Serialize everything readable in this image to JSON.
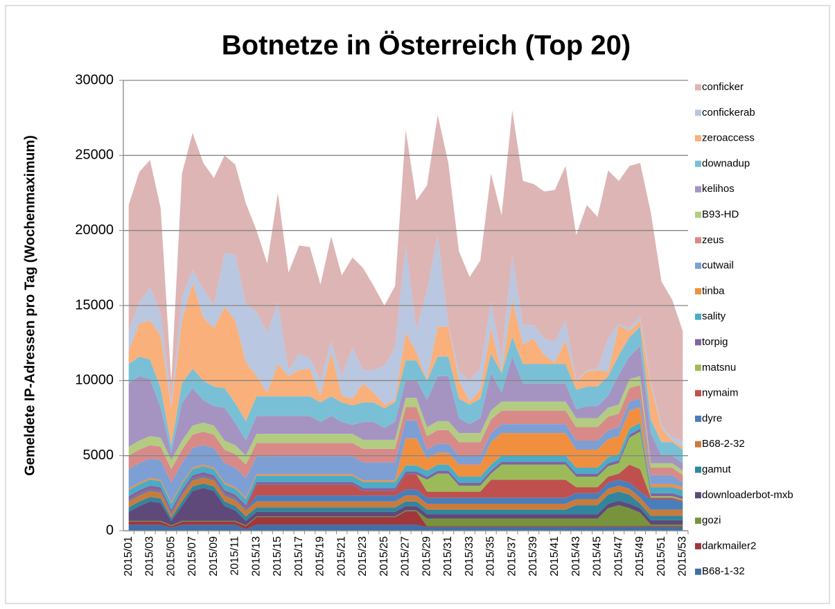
{
  "chart_data": {
    "type": "area",
    "stacked": true,
    "title": "Botnetze in Österreich (Top 20)",
    "y_label": "Gemeldete IP-Adressen pro Tag (Wochenmaximum)",
    "ylim": [
      0,
      30000
    ],
    "yticks": [
      0,
      5000,
      10000,
      15000,
      20000,
      25000,
      30000
    ],
    "grid": true,
    "legend": "right",
    "categories": [
      "2015/01",
      null,
      "2015/03",
      null,
      "2015/05",
      null,
      "2015/07",
      null,
      "2015/09",
      null,
      "2015/11",
      null,
      "2015/13",
      null,
      "2015/15",
      null,
      "2015/17",
      null,
      "2015/19",
      null,
      "2015/21",
      null,
      "2015/23",
      null,
      "2015/25",
      null,
      "2015/27",
      null,
      "2015/29",
      null,
      "2015/31",
      null,
      "2015/33",
      null,
      "2015/35",
      null,
      "2015/37",
      null,
      "2015/39",
      null,
      "2015/41",
      null,
      "2015/43",
      null,
      "2015/45",
      null,
      "2015/47",
      null,
      "2015/49",
      null,
      "2015/51",
      null,
      "2015/53"
    ],
    "series": [
      {
        "name": "conficker",
        "color": "#DDB5B5",
        "values": [
          8400,
          8700,
          8500,
          7000,
          1400,
          8300,
          9100,
          8400,
          8500,
          6500,
          6000,
          6700,
          5400,
          4600,
          7300,
          6500,
          7200,
          7400,
          6400,
          7000,
          6700,
          6000,
          6800,
          5600,
          4000,
          4100,
          7700,
          8600,
          7000,
          8000,
          10800,
          8000,
          6900,
          7200,
          8600,
          9500,
          9700,
          9600,
          9400,
          9800,
          10100,
          10300,
          9700,
          11000,
          10100,
          11200,
          9500,
          10800,
          10200,
          11200,
          9600,
          9200,
          7300
        ]
      },
      {
        "name": "confickerab",
        "color": "#B9C7E0",
        "values": [
          1300,
          1400,
          2200,
          1500,
          300,
          1500,
          900,
          1900,
          1500,
          3600,
          4400,
          3900,
          4300,
          4000,
          4100,
          400,
          1100,
          700,
          1000,
          700,
          1300,
          3400,
          900,
          1500,
          2600,
          3500,
          5800,
          1500,
          5900,
          6100,
          100,
          600,
          1400,
          1400,
          1700,
          900,
          2900,
          1300,
          900,
          1100,
          1400,
          1300,
          100,
          100,
          100,
          2200,
          100,
          200,
          300,
          300,
          200,
          200,
          400
        ]
      },
      {
        "name": "zeroaccess",
        "color": "#FAB07A",
        "values": [
          900,
          2200,
          2600,
          3500,
          2500,
          4200,
          5700,
          4200,
          3900,
          5400,
          5500,
          3900,
          1350,
          250,
          2150,
          1350,
          1750,
          1850,
          450,
          2950,
          450,
          450,
          1250,
          650,
          250,
          150,
          1850,
          550,
          100,
          2000,
          2000,
          1200,
          200,
          600,
          1700,
          100,
          2500,
          1300,
          1700,
          600,
          100,
          1600,
          500,
          1000,
          1100,
          300,
          2000,
          400,
          400,
          2300,
          900,
          100,
          200
        ]
      },
      {
        "name": "downadup",
        "color": "#79C0D6",
        "values": [
          1300,
          1300,
          1300,
          1300,
          500,
          1300,
          1300,
          1300,
          1300,
          1300,
          1300,
          1300,
          1300,
          1300,
          1300,
          1300,
          1300,
          1300,
          1300,
          1300,
          1300,
          1300,
          1300,
          1300,
          1300,
          1300,
          1300,
          1300,
          1300,
          1300,
          1300,
          1300,
          1300,
          1300,
          1300,
          1300,
          1300,
          1300,
          1300,
          1300,
          1300,
          1300,
          1300,
          1300,
          1300,
          1300,
          1300,
          1300,
          1300,
          900,
          900,
          900,
          900
        ]
      },
      {
        "name": "kelihos",
        "color": "#A594C2",
        "values": [
          4200,
          4300,
          3800,
          2000,
          500,
          2500,
          2500,
          1500,
          1300,
          2200,
          1500,
          1000,
          1200,
          1200,
          1200,
          1200,
          1200,
          1200,
          800,
          1200,
          800,
          600,
          1200,
          1200,
          800,
          1200,
          1200,
          1200,
          1800,
          3000,
          3000,
          1000,
          600,
          1000,
          2500,
          600,
          3000,
          1200,
          1200,
          1200,
          1200,
          1200,
          600,
          800,
          800,
          800,
          2000,
          1500,
          2000,
          2000,
          500,
          500,
          500
        ]
      },
      {
        "name": "B93-HD",
        "color": "#B3CC82",
        "values": [
          600,
          600,
          600,
          600,
          600,
          600,
          600,
          600,
          600,
          600,
          600,
          600,
          600,
          600,
          600,
          600,
          600,
          600,
          600,
          600,
          600,
          600,
          600,
          600,
          600,
          600,
          600,
          600,
          600,
          600,
          600,
          600,
          600,
          600,
          600,
          600,
          600,
          600,
          600,
          600,
          600,
          600,
          600,
          600,
          600,
          600,
          600,
          600,
          600,
          300,
          300,
          300,
          300
        ]
      },
      {
        "name": "zeus",
        "color": "#D88A89",
        "values": [
          900,
          900,
          900,
          900,
          900,
          900,
          900,
          900,
          900,
          900,
          900,
          900,
          900,
          900,
          900,
          900,
          900,
          900,
          900,
          900,
          900,
          900,
          900,
          900,
          900,
          900,
          900,
          900,
          900,
          900,
          900,
          900,
          900,
          900,
          900,
          900,
          900,
          900,
          900,
          900,
          900,
          900,
          900,
          900,
          900,
          900,
          900,
          900,
          900,
          500,
          500,
          500,
          500
        ]
      },
      {
        "name": "cutwail",
        "color": "#7E9FD3",
        "values": [
          1300,
          1300,
          1300,
          1300,
          1300,
          1300,
          1300,
          1300,
          1300,
          1300,
          1300,
          1300,
          1200,
          1200,
          1200,
          1200,
          1200,
          1200,
          1200,
          1200,
          1200,
          1200,
          1200,
          1200,
          1200,
          1200,
          1200,
          1200,
          600,
          600,
          600,
          600,
          600,
          600,
          600,
          600,
          600,
          600,
          600,
          600,
          600,
          600,
          600,
          600,
          600,
          600,
          600,
          600,
          600,
          600,
          600,
          600,
          300
        ]
      },
      {
        "name": "tinba",
        "color": "#F0903F",
        "values": [
          100,
          100,
          100,
          100,
          100,
          100,
          100,
          100,
          100,
          100,
          100,
          100,
          100,
          100,
          100,
          100,
          100,
          100,
          100,
          100,
          100,
          100,
          100,
          100,
          100,
          100,
          1800,
          1800,
          800,
          800,
          800,
          800,
          800,
          800,
          1500,
          1500,
          1500,
          1500,
          1500,
          1500,
          1500,
          1500,
          1200,
          1200,
          1200,
          1200,
          1200,
          1200,
          1000,
          200,
          200,
          200,
          200
        ]
      },
      {
        "name": "sality",
        "color": "#4BACC6",
        "values": [
          400,
          400,
          400,
          400,
          400,
          400,
          400,
          400,
          400,
          400,
          400,
          400,
          400,
          400,
          400,
          400,
          400,
          400,
          400,
          400,
          400,
          400,
          400,
          400,
          400,
          400,
          400,
          400,
          400,
          400,
          400,
          400,
          400,
          400,
          400,
          400,
          400,
          400,
          400,
          400,
          400,
          400,
          400,
          400,
          400,
          400,
          400,
          400,
          400,
          400,
          400,
          400,
          400
        ]
      },
      {
        "name": "torpig",
        "color": "#8064A2",
        "values": [
          200,
          200,
          200,
          200,
          200,
          200,
          200,
          200,
          200,
          200,
          200,
          200,
          200,
          200,
          200,
          200,
          200,
          200,
          200,
          200,
          200,
          200,
          200,
          200,
          200,
          200,
          200,
          200,
          200,
          200,
          200,
          200,
          200,
          200,
          200,
          200,
          200,
          200,
          200,
          200,
          200,
          200,
          200,
          200,
          200,
          200,
          200,
          200,
          200,
          200,
          200,
          200,
          200
        ]
      },
      {
        "name": "matsnu",
        "color": "#9BBB59",
        "values": [
          0,
          0,
          0,
          0,
          0,
          0,
          0,
          0,
          0,
          0,
          0,
          0,
          0,
          0,
          0,
          0,
          0,
          0,
          0,
          0,
          0,
          0,
          0,
          0,
          0,
          0,
          0,
          0,
          800,
          1200,
          1200,
          400,
          400,
          400,
          400,
          1000,
          1000,
          1000,
          1000,
          1000,
          1000,
          1000,
          700,
          700,
          700,
          700,
          700,
          1800,
          2500,
          100,
          100,
          100,
          100
        ]
      },
      {
        "name": "nymaim",
        "color": "#C0504D",
        "values": [
          50,
          50,
          50,
          50,
          50,
          50,
          50,
          50,
          50,
          50,
          50,
          50,
          700,
          700,
          700,
          700,
          700,
          700,
          700,
          700,
          700,
          700,
          300,
          300,
          300,
          300,
          1000,
          1000,
          400,
          400,
          400,
          400,
          400,
          400,
          1200,
          1200,
          1200,
          1200,
          1200,
          1200,
          1200,
          1200,
          400,
          400,
          400,
          400,
          400,
          1200,
          1500,
          100,
          100,
          100,
          100
        ]
      },
      {
        "name": "dyre",
        "color": "#4A7EBB",
        "values": [
          100,
          100,
          100,
          100,
          100,
          100,
          100,
          100,
          100,
          100,
          100,
          100,
          400,
          400,
          400,
          400,
          400,
          400,
          400,
          400,
          400,
          400,
          400,
          400,
          400,
          400,
          400,
          400,
          400,
          400,
          400,
          400,
          400,
          400,
          400,
          400,
          400,
          400,
          400,
          400,
          400,
          400,
          400,
          400,
          400,
          400,
          400,
          400,
          400,
          700,
          700,
          700,
          500
        ]
      },
      {
        "name": "B68-2-32",
        "color": "#C97B3C",
        "values": [
          400,
          400,
          400,
          400,
          200,
          400,
          400,
          400,
          400,
          400,
          400,
          400,
          400,
          400,
          400,
          400,
          400,
          400,
          400,
          400,
          400,
          400,
          400,
          400,
          400,
          400,
          400,
          400,
          400,
          400,
          400,
          400,
          400,
          400,
          400,
          400,
          400,
          400,
          400,
          400,
          400,
          400,
          400,
          400,
          400,
          400,
          400,
          400,
          400,
          400,
          400,
          400,
          400
        ]
      },
      {
        "name": "gamut",
        "color": "#31859C",
        "values": [
          300,
          300,
          300,
          300,
          200,
          300,
          300,
          300,
          300,
          300,
          300,
          300,
          300,
          300,
          300,
          300,
          300,
          300,
          300,
          300,
          300,
          300,
          300,
          300,
          300,
          300,
          300,
          300,
          300,
          300,
          300,
          300,
          300,
          300,
          300,
          300,
          300,
          300,
          300,
          300,
          300,
          300,
          600,
          600,
          600,
          600,
          600,
          600,
          300,
          300,
          300,
          300,
          300
        ]
      },
      {
        "name": "downloaderbot-mxb",
        "color": "#5F497A",
        "values": [
          600,
          1000,
          1300,
          1200,
          300,
          1000,
          2000,
          2200,
          2000,
          1000,
          700,
          300,
          300,
          300,
          300,
          300,
          300,
          300,
          300,
          300,
          300,
          300,
          300,
          300,
          300,
          300,
          300,
          300,
          300,
          300,
          300,
          300,
          300,
          300,
          300,
          300,
          300,
          300,
          300,
          300,
          300,
          300,
          300,
          300,
          300,
          300,
          300,
          300,
          300,
          300,
          300,
          300,
          300
        ]
      },
      {
        "name": "gozi",
        "color": "#77933C",
        "values": [
          50,
          50,
          50,
          50,
          50,
          50,
          50,
          50,
          50,
          50,
          50,
          50,
          50,
          50,
          50,
          50,
          50,
          50,
          50,
          50,
          50,
          50,
          50,
          50,
          50,
          50,
          50,
          50,
          500,
          500,
          500,
          500,
          500,
          500,
          500,
          500,
          500,
          500,
          500,
          500,
          500,
          500,
          500,
          500,
          500,
          1200,
          1400,
          1200,
          900,
          100,
          100,
          100,
          100
        ]
      },
      {
        "name": "darkmailer2",
        "color": "#A0373A",
        "values": [
          200,
          200,
          200,
          200,
          100,
          200,
          200,
          200,
          200,
          200,
          200,
          200,
          500,
          500,
          500,
          500,
          500,
          500,
          500,
          500,
          500,
          500,
          500,
          500,
          500,
          500,
          900,
          900,
          50,
          50,
          50,
          50,
          50,
          50,
          50,
          50,
          50,
          50,
          50,
          50,
          50,
          50,
          50,
          50,
          50,
          50,
          50,
          50,
          50,
          50,
          50,
          50,
          50
        ]
      },
      {
        "name": "B68-1-32",
        "color": "#3F6FA8",
        "values": [
          400,
          400,
          400,
          400,
          200,
          400,
          400,
          400,
          400,
          400,
          400,
          100,
          400,
          400,
          400,
          400,
          400,
          400,
          400,
          400,
          400,
          400,
          400,
          400,
          400,
          400,
          400,
          400,
          250,
          250,
          250,
          250,
          250,
          250,
          250,
          250,
          250,
          250,
          250,
          250,
          250,
          250,
          250,
          250,
          250,
          250,
          250,
          250,
          250,
          250,
          250,
          250,
          250
        ]
      }
    ]
  }
}
